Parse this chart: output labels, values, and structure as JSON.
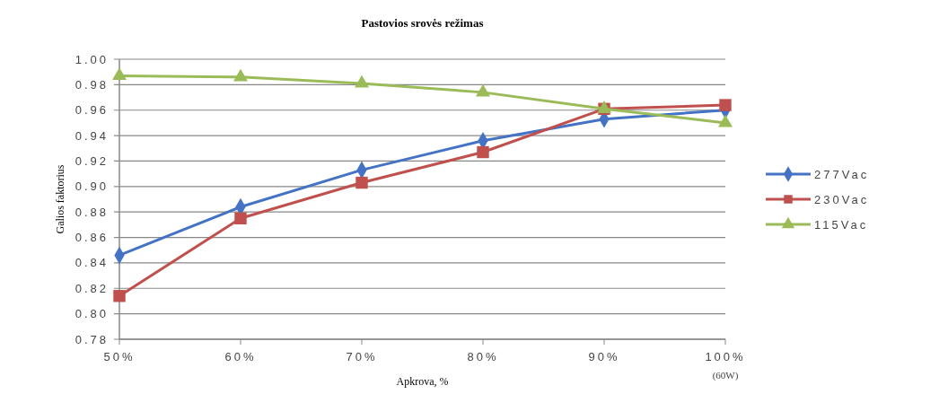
{
  "chart_data": {
    "type": "line",
    "title": "Pastovios srovės režimas",
    "xlabel": "Apkrova, %",
    "ylabel": "Galios faktorius",
    "categories": [
      "50%",
      "60%",
      "70%",
      "80%",
      "90%",
      "100%"
    ],
    "ylim": [
      0.78,
      1.0
    ],
    "yticks": [
      {
        "value": 0.78,
        "label": "0.78"
      },
      {
        "value": 0.8,
        "label": "0.80"
      },
      {
        "value": 0.82,
        "label": "0.82"
      },
      {
        "value": 0.84,
        "label": "0.84"
      },
      {
        "value": 0.86,
        "label": "0.86"
      },
      {
        "value": 0.88,
        "label": "0.88"
      },
      {
        "value": 0.9,
        "label": "0.90"
      },
      {
        "value": 0.92,
        "label": "0.92"
      },
      {
        "value": 0.94,
        "label": "0.94"
      },
      {
        "value": 0.96,
        "label": "0.96"
      },
      {
        "value": 0.98,
        "label": "0.98"
      },
      {
        "value": 1.0,
        "label": "1.00"
      }
    ],
    "grid": "y",
    "legend": "right",
    "line_style": "solid",
    "annotations": [
      "(60W)"
    ],
    "series": [
      {
        "name": "277Vac",
        "color": "#4472c4",
        "marker": "diamond",
        "values": [
          0.846,
          0.884,
          0.913,
          0.936,
          0.953,
          0.96
        ]
      },
      {
        "name": "230Vac",
        "color": "#c0504d",
        "marker": "square",
        "values": [
          0.814,
          0.875,
          0.903,
          0.927,
          0.961,
          0.964
        ]
      },
      {
        "name": "115Vac",
        "color": "#9bbb59",
        "marker": "triangle",
        "values": [
          0.987,
          0.986,
          0.981,
          0.974,
          0.961,
          0.95
        ]
      }
    ]
  }
}
